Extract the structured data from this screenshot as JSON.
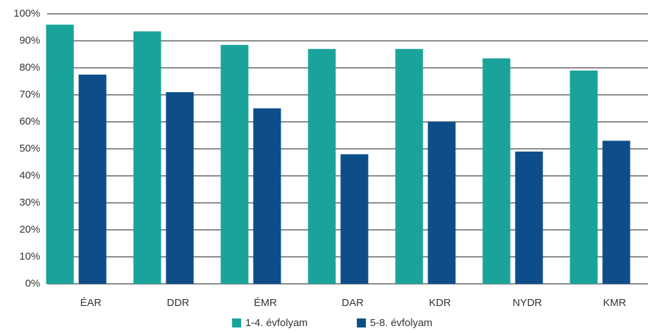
{
  "chart_data": {
    "type": "bar",
    "categories": [
      "ÉAR",
      "DDR",
      "ÉMR",
      "DAR",
      "KDR",
      "NYDR",
      "KMR"
    ],
    "series": [
      {
        "name": "1-4. évfolyam",
        "color": "#1aa39b",
        "values": [
          96,
          93.5,
          88.5,
          87,
          87,
          83.5,
          79
        ]
      },
      {
        "name": "5-8. évfolyam",
        "color": "#0d4e8a",
        "values": [
          77.5,
          71,
          65,
          48,
          60,
          49,
          53
        ]
      }
    ],
    "ylim": [
      0,
      100
    ],
    "yticks": [
      {
        "value": 0,
        "label": "0%"
      },
      {
        "value": 10,
        "label": "10%"
      },
      {
        "value": 20,
        "label": "20%"
      },
      {
        "value": 30,
        "label": "30%"
      },
      {
        "value": 40,
        "label": "40%"
      },
      {
        "value": 50,
        "label": "50%"
      },
      {
        "value": 60,
        "label": "60%"
      },
      {
        "value": 70,
        "label": "70%"
      },
      {
        "value": 80,
        "label": "80%"
      },
      {
        "value": 90,
        "label": "90%"
      },
      {
        "value": 100,
        "label": "100%"
      }
    ],
    "grid": true,
    "legend": "bottom"
  }
}
